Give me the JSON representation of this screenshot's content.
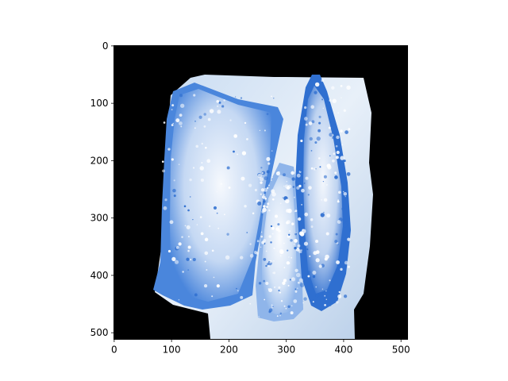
{
  "chart_data": {
    "type": "image",
    "title": "",
    "xlabel": "",
    "ylabel": "",
    "xlim": [
      -0.5,
      511.5
    ],
    "ylim": [
      511.5,
      -0.5
    ],
    "y_axis_inverted": true,
    "x_ticks": [
      0,
      100,
      200,
      300,
      400,
      500
    ],
    "y_ticks": [
      0,
      100,
      200,
      300,
      400,
      500
    ],
    "x_tick_labels": [
      "0",
      "100",
      "200",
      "300",
      "400",
      "500"
    ],
    "y_tick_labels": [
      "0",
      "100",
      "200",
      "300",
      "400",
      "500"
    ],
    "background_color": "#000000",
    "subject": "blue frozen fish fillets covered in frost on a white tray",
    "colors": {
      "fillet_deep": "#2f6fd0",
      "fillet_mid": "#5b93e0",
      "frost": "#eef4fb",
      "tray": "#dbe7f4"
    }
  }
}
